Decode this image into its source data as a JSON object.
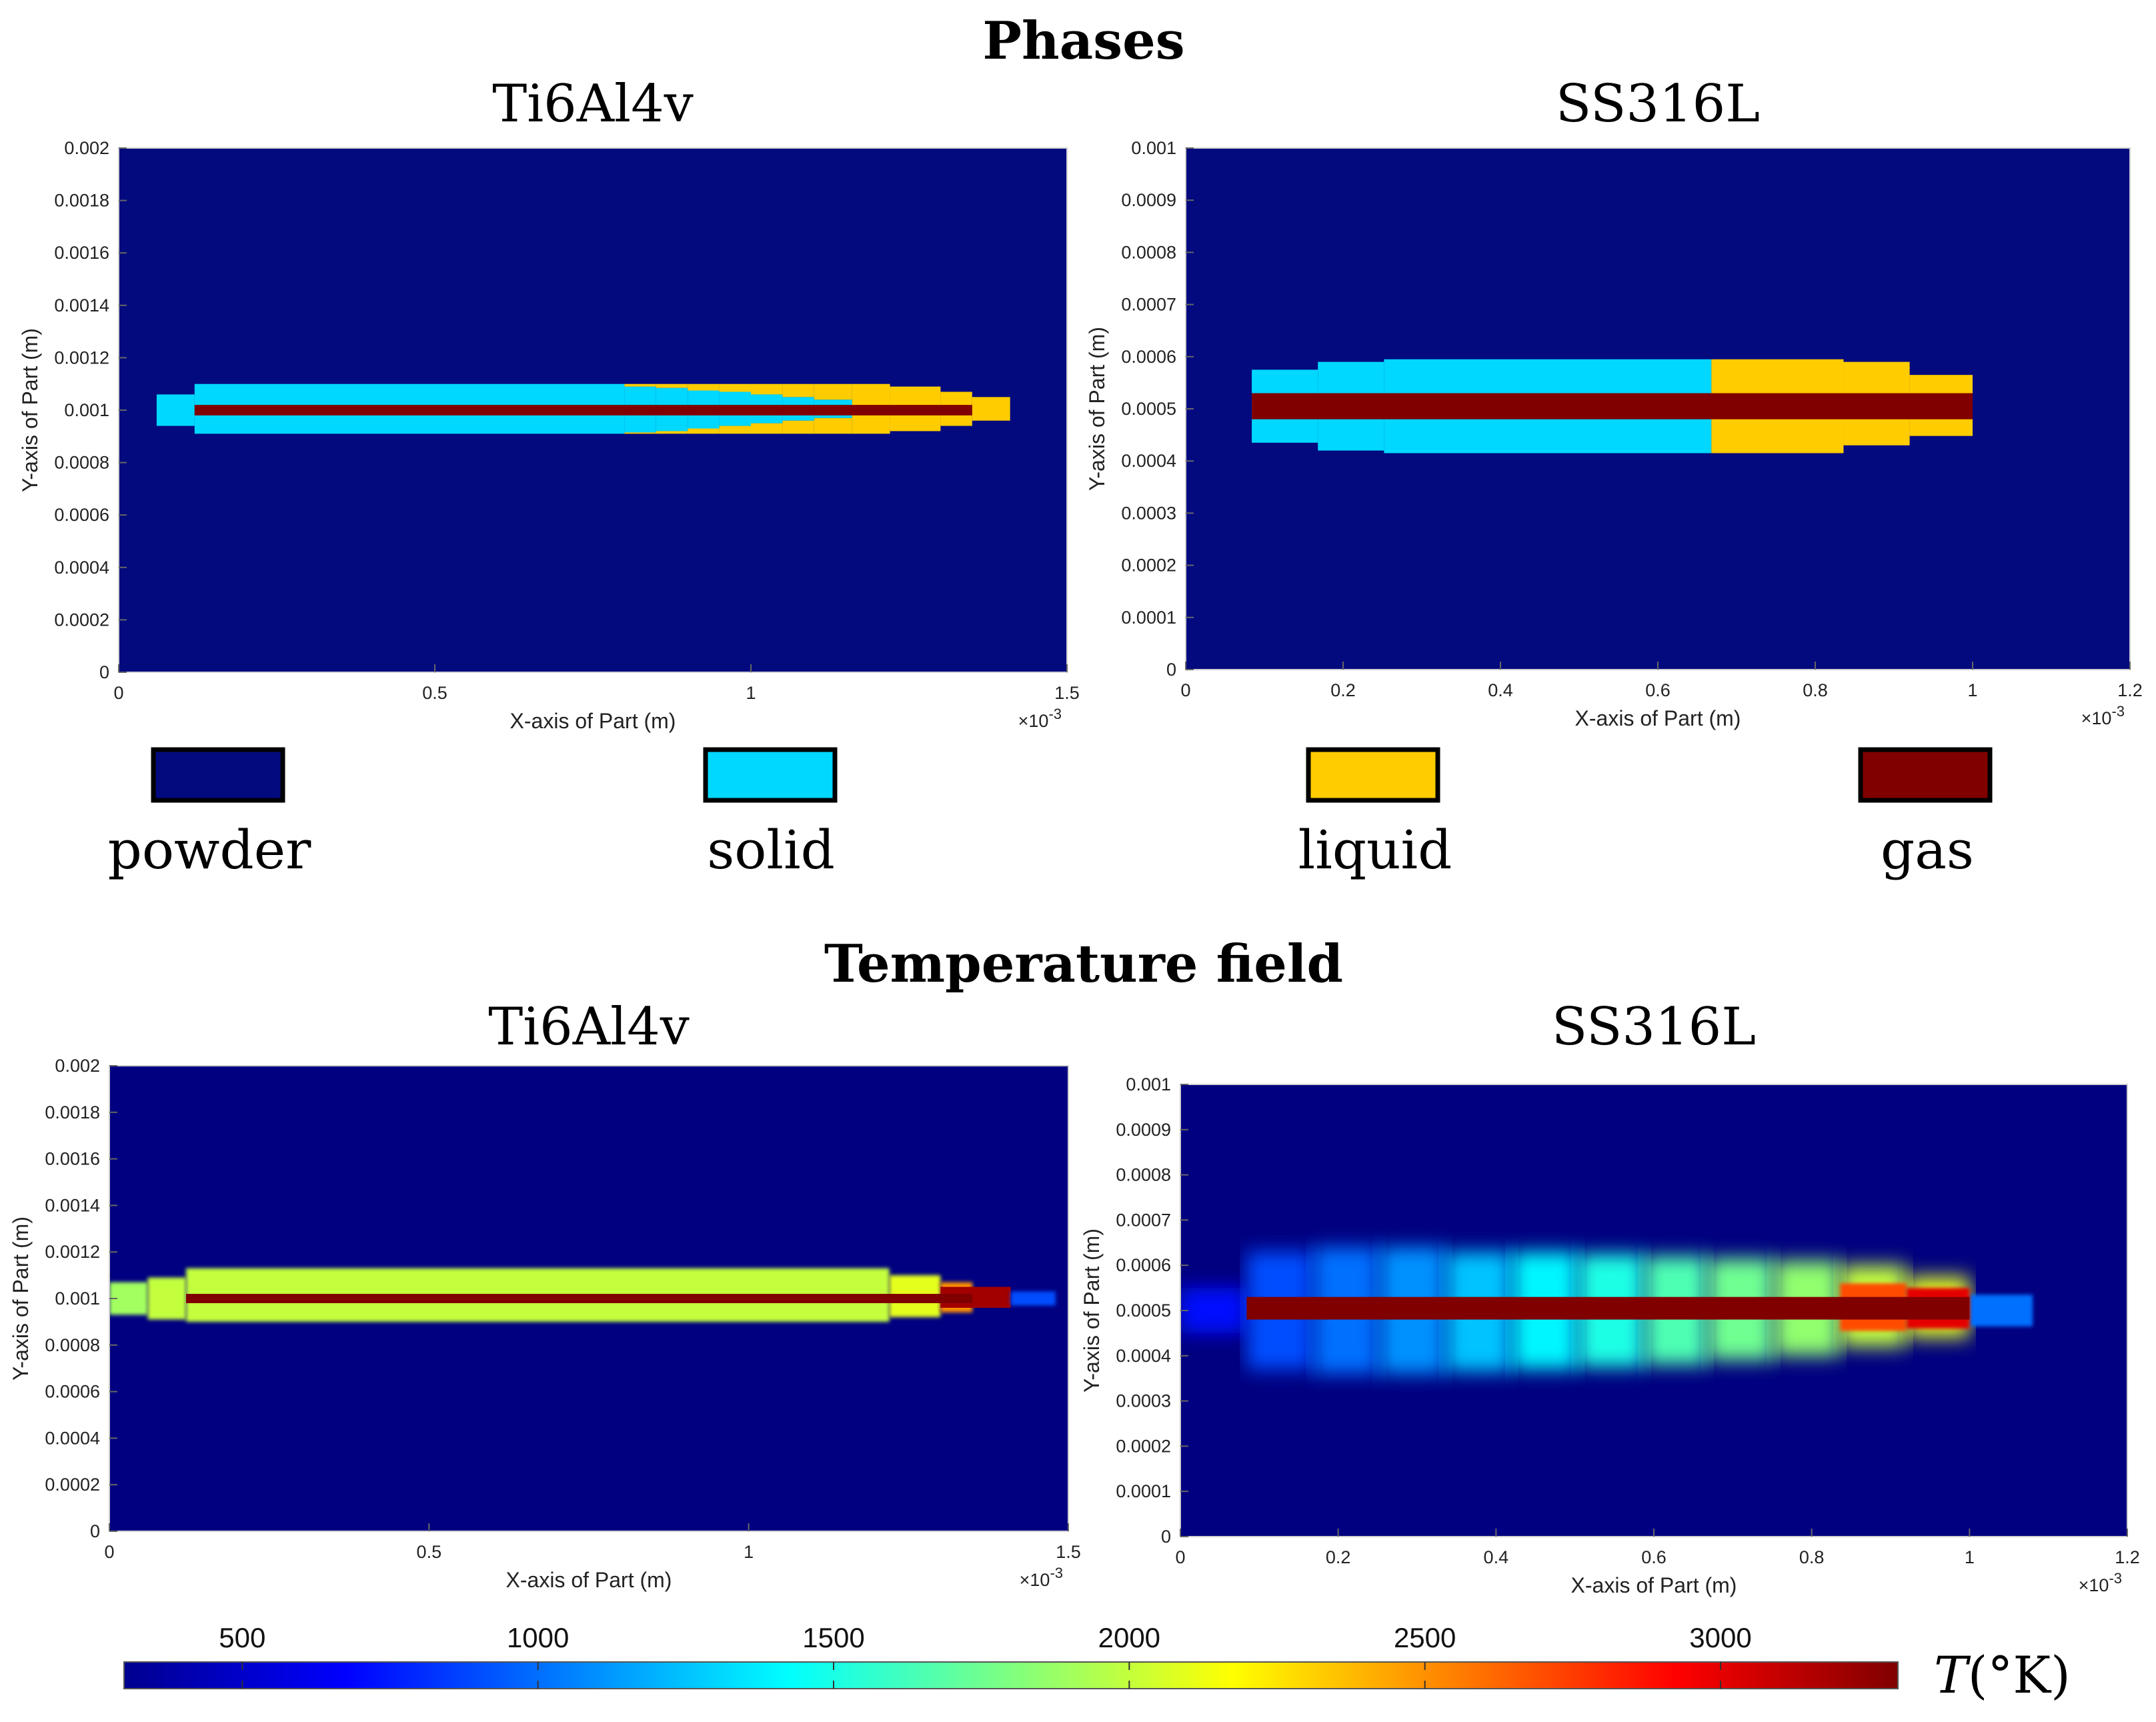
{
  "sections": {
    "phases_title": "Phases",
    "temperature_title": "Temperature field"
  },
  "colors": {
    "powder": "#020a7e",
    "solid": "#00d8ff",
    "liquid": "#ffcc00",
    "gas": "#800000"
  },
  "legend": [
    {
      "label": "powder",
      "color": "#020a7e"
    },
    {
      "label": "solid",
      "color": "#00d8ff"
    },
    {
      "label": "liquid",
      "color": "#ffcc00"
    },
    {
      "label": "gas",
      "color": "#800000"
    }
  ],
  "colorbar": {
    "label": "T(°K)",
    "label_var": "T",
    "label_unit": "(°K)",
    "range": [
      300,
      3300
    ],
    "ticks": [
      "500",
      "1000",
      "1500",
      "2000",
      "2500",
      "3000"
    ],
    "tick_values": [
      500,
      1000,
      1500,
      2000,
      2500,
      3000
    ]
  },
  "chart_data": [
    {
      "id": "phase_ti",
      "type": "heatmap",
      "title": "Ti6Al4v",
      "xlabel": "X-axis of Part (m)",
      "ylabel": "Y-axis of Part (m)",
      "x_exponent": "×10",
      "x_exponent_power": "-3",
      "xlim": [
        0,
        1.5
      ],
      "ylim": [
        0,
        0.002
      ],
      "xticks": [
        "0",
        "0.5",
        "1",
        "1.5"
      ],
      "xtick_values": [
        0,
        0.5,
        1,
        1.5
      ],
      "yticks": [
        "0",
        "0.0002",
        "0.0004",
        "0.0006",
        "0.0008",
        "0.001",
        "0.0012",
        "0.0014",
        "0.0016",
        "0.0018",
        "0.002"
      ],
      "ytick_values": [
        0,
        0.0002,
        0.0004,
        0.0006,
        0.0008,
        0.001,
        0.0012,
        0.0014,
        0.0016,
        0.0018,
        0.002
      ],
      "background": "powder",
      "regions": [
        {
          "phase": "solid",
          "x": [
            0.06,
            0.12
          ],
          "y": [
            0.00094,
            0.00106
          ]
        },
        {
          "phase": "solid",
          "x": [
            0.12,
            0.8
          ],
          "y": [
            0.00091,
            0.0011
          ]
        },
        {
          "phase": "solid",
          "x": [
            0.8,
            0.85
          ],
          "y": [
            0.000915,
            0.00109
          ]
        },
        {
          "phase": "solid",
          "x": [
            0.85,
            0.9
          ],
          "y": [
            0.00092,
            0.001085
          ]
        },
        {
          "phase": "solid",
          "x": [
            0.9,
            0.95
          ],
          "y": [
            0.00093,
            0.001075
          ]
        },
        {
          "phase": "solid",
          "x": [
            0.95,
            1.0
          ],
          "y": [
            0.00094,
            0.00107
          ]
        },
        {
          "phase": "solid",
          "x": [
            1.0,
            1.05
          ],
          "y": [
            0.00095,
            0.00106
          ]
        },
        {
          "phase": "solid",
          "x": [
            1.05,
            1.1
          ],
          "y": [
            0.00096,
            0.00105
          ]
        },
        {
          "phase": "solid",
          "x": [
            1.1,
            1.16
          ],
          "y": [
            0.00097,
            0.00104
          ]
        },
        {
          "phase": "liquid",
          "x": [
            0.8,
            0.85
          ],
          "y": [
            0.00109,
            0.0011
          ]
        },
        {
          "phase": "liquid",
          "x": [
            0.85,
            0.9
          ],
          "y": [
            0.001085,
            0.0011
          ]
        },
        {
          "phase": "liquid",
          "x": [
            0.9,
            0.95
          ],
          "y": [
            0.001075,
            0.0011
          ]
        },
        {
          "phase": "liquid",
          "x": [
            0.95,
            1.0
          ],
          "y": [
            0.00107,
            0.0011
          ]
        },
        {
          "phase": "liquid",
          "x": [
            1.0,
            1.05
          ],
          "y": [
            0.00106,
            0.0011
          ]
        },
        {
          "phase": "liquid",
          "x": [
            1.05,
            1.1
          ],
          "y": [
            0.00105,
            0.0011
          ]
        },
        {
          "phase": "liquid",
          "x": [
            1.1,
            1.16
          ],
          "y": [
            0.00104,
            0.0011
          ]
        },
        {
          "phase": "liquid",
          "x": [
            0.8,
            0.85
          ],
          "y": [
            0.00091,
            0.000915
          ]
        },
        {
          "phase": "liquid",
          "x": [
            0.85,
            0.9
          ],
          "y": [
            0.00091,
            0.00092
          ]
        },
        {
          "phase": "liquid",
          "x": [
            0.9,
            0.95
          ],
          "y": [
            0.00091,
            0.00093
          ]
        },
        {
          "phase": "liquid",
          "x": [
            0.95,
            1.0
          ],
          "y": [
            0.00091,
            0.00094
          ]
        },
        {
          "phase": "liquid",
          "x": [
            1.0,
            1.05
          ],
          "y": [
            0.00091,
            0.00095
          ]
        },
        {
          "phase": "liquid",
          "x": [
            1.05,
            1.1
          ],
          "y": [
            0.00091,
            0.00096
          ]
        },
        {
          "phase": "liquid",
          "x": [
            1.1,
            1.16
          ],
          "y": [
            0.00091,
            0.00097
          ]
        },
        {
          "phase": "liquid",
          "x": [
            1.16,
            1.22
          ],
          "y": [
            0.00091,
            0.0011
          ]
        },
        {
          "phase": "liquid",
          "x": [
            1.22,
            1.3
          ],
          "y": [
            0.00092,
            0.00109
          ]
        },
        {
          "phase": "liquid",
          "x": [
            1.3,
            1.35
          ],
          "y": [
            0.00094,
            0.00107
          ]
        },
        {
          "phase": "liquid",
          "x": [
            1.35,
            1.41
          ],
          "y": [
            0.00096,
            0.00105
          ]
        },
        {
          "phase": "gas",
          "x": [
            0.12,
            1.35
          ],
          "y": [
            0.00098,
            0.00102
          ]
        }
      ]
    },
    {
      "id": "phase_ss",
      "type": "heatmap",
      "title": "SS316L",
      "xlabel": "X-axis of Part (m)",
      "ylabel": "Y-axis of Part (m)",
      "x_exponent": "×10",
      "x_exponent_power": "-3",
      "xlim": [
        0,
        1.2
      ],
      "ylim": [
        0,
        0.001
      ],
      "xticks": [
        "0",
        "0.2",
        "0.4",
        "0.6",
        "0.8",
        "1",
        "1.2"
      ],
      "xtick_values": [
        0,
        0.2,
        0.4,
        0.6,
        0.8,
        1,
        1.2
      ],
      "yticks": [
        "0",
        "0.0001",
        "0.0002",
        "0.0003",
        "0.0004",
        "0.0005",
        "0.0006",
        "0.0007",
        "0.0008",
        "0.0009",
        "0.001"
      ],
      "ytick_values": [
        0,
        0.0001,
        0.0002,
        0.0003,
        0.0004,
        0.0005,
        0.0006,
        0.0007,
        0.0008,
        0.0009,
        0.001
      ],
      "background": "powder",
      "regions": [
        {
          "phase": "solid",
          "x": [
            0.084,
            0.168
          ],
          "y": [
            0.000435,
            0.000575
          ]
        },
        {
          "phase": "solid",
          "x": [
            0.168,
            0.252
          ],
          "y": [
            0.00042,
            0.00059
          ]
        },
        {
          "phase": "solid",
          "x": [
            0.252,
            0.668
          ],
          "y": [
            0.000415,
            0.000595
          ]
        },
        {
          "phase": "liquid",
          "x": [
            0.668,
            0.836
          ],
          "y": [
            0.000415,
            0.000595
          ]
        },
        {
          "phase": "liquid",
          "x": [
            0.836,
            0.92
          ],
          "y": [
            0.00043,
            0.00059
          ]
        },
        {
          "phase": "liquid",
          "x": [
            0.92,
            1.0
          ],
          "y": [
            0.000448,
            0.000565
          ]
        },
        {
          "phase": "gas",
          "x": [
            0.084,
            1.0
          ],
          "y": [
            0.00048,
            0.00053
          ]
        }
      ]
    },
    {
      "id": "temp_ti",
      "type": "heatmap",
      "title": "Ti6Al4v",
      "xlabel": "X-axis of Part (m)",
      "ylabel": "Y-axis of Part (m)",
      "x_exponent": "×10",
      "x_exponent_power": "-3",
      "xlim": [
        0,
        1.5
      ],
      "ylim": [
        0,
        0.002
      ],
      "xticks": [
        "0",
        "0.5",
        "1",
        "1.5"
      ],
      "xtick_values": [
        0,
        0.5,
        1,
        1.5
      ],
      "yticks": [
        "0",
        "0.0002",
        "0.0004",
        "0.0006",
        "0.0008",
        "0.001",
        "0.0012",
        "0.0014",
        "0.0016",
        "0.0018",
        "0.002"
      ],
      "ytick_values": [
        0,
        0.0002,
        0.0004,
        0.0006,
        0.0008,
        0.001,
        0.0012,
        0.0014,
        0.0016,
        0.0018,
        0.002
      ],
      "background_temperature": 300,
      "regions": [
        {
          "T": 1900,
          "x": [
            0.0,
            0.06
          ],
          "y": [
            0.00093,
            0.00107
          ],
          "blur": 1
        },
        {
          "T": 2000,
          "x": [
            0.06,
            0.12
          ],
          "y": [
            0.00091,
            0.00109
          ],
          "blur": 1
        },
        {
          "T": 2000,
          "x": [
            0.12,
            1.22
          ],
          "y": [
            0.0009,
            0.00113
          ],
          "blur": 1
        },
        {
          "T": 2100,
          "x": [
            1.22,
            1.3
          ],
          "y": [
            0.00092,
            0.0011
          ],
          "blur": 1
        },
        {
          "T": 2500,
          "x": [
            1.3,
            1.35
          ],
          "y": [
            0.00094,
            0.00107
          ],
          "blur": 1
        },
        {
          "T": 3200,
          "x": [
            1.3,
            1.41
          ],
          "y": [
            0.00096,
            0.00105
          ],
          "blur": 0
        },
        {
          "T": 900,
          "x": [
            1.41,
            1.48
          ],
          "y": [
            0.00097,
            0.00103
          ],
          "blur": 1
        },
        {
          "T": 3300,
          "x": [
            0.12,
            1.35
          ],
          "y": [
            0.00098,
            0.00102
          ],
          "blur": 0
        }
      ]
    },
    {
      "id": "temp_ss",
      "type": "heatmap",
      "title": "SS316L",
      "xlabel": "X-axis of Part (m)",
      "ylabel": "Y-axis of Part (m)",
      "x_exponent": "×10",
      "x_exponent_power": "-3",
      "xlim": [
        0,
        1.2
      ],
      "ylim": [
        0,
        0.001
      ],
      "xticks": [
        "0",
        "0.2",
        "0.4",
        "0.6",
        "0.8",
        "1",
        "1.2"
      ],
      "xtick_values": [
        0,
        0.2,
        0.4,
        0.6,
        0.8,
        1,
        1.2
      ],
      "yticks": [
        "0",
        "0.0001",
        "0.0002",
        "0.0003",
        "0.0004",
        "0.0005",
        "0.0006",
        "0.0007",
        "0.0008",
        "0.0009",
        "0.001"
      ],
      "ytick_values": [
        0,
        0.0001,
        0.0002,
        0.0003,
        0.0004,
        0.0005,
        0.0006,
        0.0007,
        0.0008,
        0.0009,
        0.001
      ],
      "background_temperature": 300,
      "regions": [
        {
          "T": 700,
          "x": [
            0.0,
            0.084
          ],
          "y": [
            0.00045,
            0.00055
          ],
          "blur": 2
        },
        {
          "T": 900,
          "x": [
            0.084,
            0.168
          ],
          "y": [
            0.00037,
            0.00063
          ],
          "blur": 2
        },
        {
          "T": 1000,
          "x": [
            0.168,
            0.252
          ],
          "y": [
            0.00036,
            0.00064
          ],
          "blur": 2
        },
        {
          "T": 1100,
          "x": [
            0.252,
            0.336
          ],
          "y": [
            0.00036,
            0.00064
          ],
          "blur": 2
        },
        {
          "T": 1250,
          "x": [
            0.336,
            0.42
          ],
          "y": [
            0.000365,
            0.00063
          ],
          "blur": 2
        },
        {
          "T": 1400,
          "x": [
            0.42,
            0.504
          ],
          "y": [
            0.00037,
            0.00063
          ],
          "blur": 2
        },
        {
          "T": 1500,
          "x": [
            0.504,
            0.588
          ],
          "y": [
            0.000375,
            0.000625
          ],
          "blur": 2
        },
        {
          "T": 1650,
          "x": [
            0.588,
            0.668
          ],
          "y": [
            0.00038,
            0.00062
          ],
          "blur": 2
        },
        {
          "T": 1750,
          "x": [
            0.668,
            0.752
          ],
          "y": [
            0.00039,
            0.000615
          ],
          "blur": 2
        },
        {
          "T": 1850,
          "x": [
            0.752,
            0.836
          ],
          "y": [
            0.0004,
            0.00061
          ],
          "blur": 2
        },
        {
          "T": 2000,
          "x": [
            0.836,
            0.92
          ],
          "y": [
            0.00042,
            0.0006
          ],
          "blur": 2
        },
        {
          "T": 2100,
          "x": [
            0.92,
            1.0
          ],
          "y": [
            0.00044,
            0.000575
          ],
          "blur": 2
        },
        {
          "T": 1000,
          "x": [
            1.0,
            1.08
          ],
          "y": [
            0.000465,
            0.000535
          ],
          "blur": 1
        },
        {
          "T": 2700,
          "x": [
            0.836,
            0.92
          ],
          "y": [
            0.000455,
            0.00056
          ],
          "blur": 1
        },
        {
          "T": 3000,
          "x": [
            0.92,
            1.0
          ],
          "y": [
            0.00046,
            0.00055
          ],
          "blur": 1
        },
        {
          "T": 3300,
          "x": [
            0.084,
            1.0
          ],
          "y": [
            0.00048,
            0.00053
          ],
          "blur": 0
        }
      ]
    }
  ]
}
